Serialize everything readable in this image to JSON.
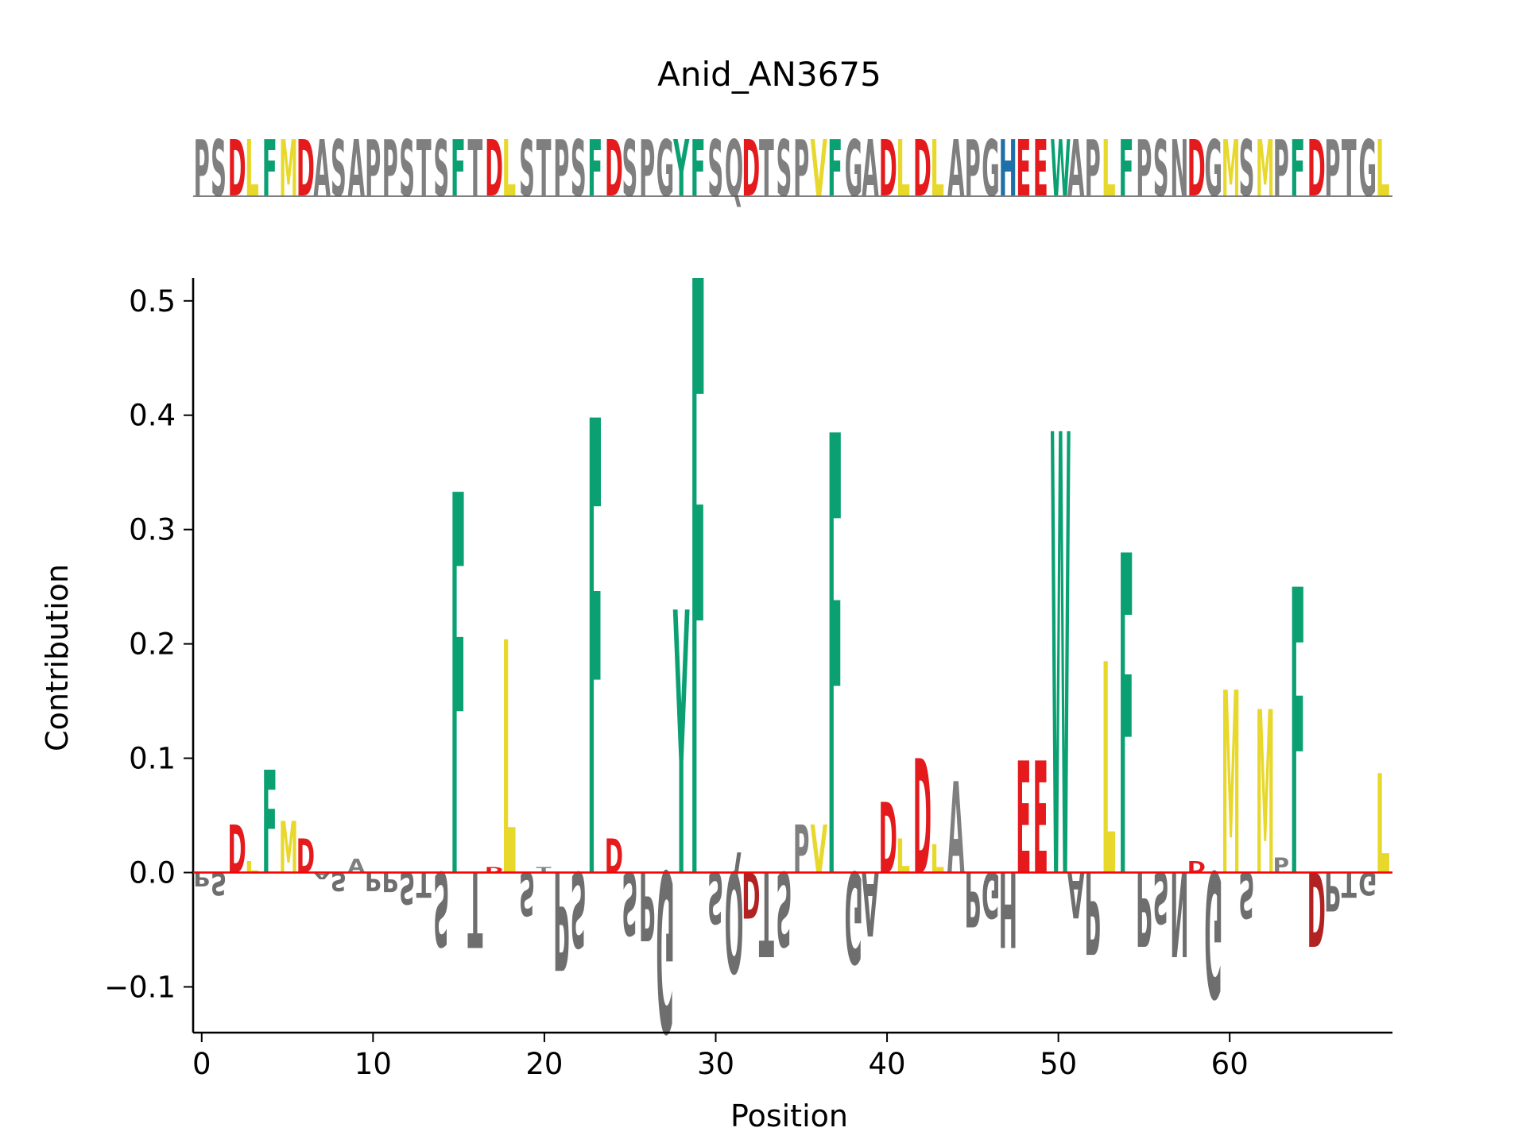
{
  "chart_data": {
    "type": "logo",
    "title": "Anid_AN3675",
    "xlabel": "Position",
    "ylabel": "Contribution",
    "sequence": "PSDLFMDASAPPSTSFTDLSTPSFDSPGYFSQDTSPVFGADLDLAPGHEEWAPLFPSNDGMSMPFDPTGL",
    "xlim": [
      -0.5,
      69.5
    ],
    "ylim": [
      -0.14,
      0.52
    ],
    "xticks": [
      0,
      10,
      20,
      30,
      40,
      50,
      60
    ],
    "yticks": [
      -0.1,
      0.0,
      0.1,
      0.2,
      0.3,
      0.4,
      0.5
    ],
    "ytick_labels": [
      "−0.1",
      "0.0",
      "0.1",
      "0.2",
      "0.3",
      "0.4",
      "0.5"
    ],
    "baseline_color": "#ff0000",
    "colors": {
      "acidic": "#e41a1c",
      "aromatic": "#0aa072",
      "hydrophobic": "#e8d82c",
      "basic": "#1f6fa8",
      "other": "#7f7f7f",
      "negative_other": "#6e6e6e",
      "negative_acidic": "#b22222"
    },
    "letter_colors": {
      "D": "acidic",
      "E": "acidic",
      "F": "aromatic",
      "W": "aromatic",
      "Y": "aromatic",
      "L": "hydrophobic",
      "M": "hydrophobic",
      "V": "hydrophobic",
      "H": "basic",
      "P": "other",
      "S": "other",
      "A": "other",
      "T": "other",
      "G": "other",
      "Q": "other",
      "N": "other"
    },
    "values": [
      -0.012,
      -0.02,
      0.042,
      0.01,
      0.09,
      0.045,
      0.03,
      -0.006,
      -0.016,
      0.012,
      -0.016,
      -0.017,
      -0.028,
      -0.022,
      -0.065,
      0.333,
      -0.066,
      0.005,
      0.204,
      -0.038,
      0.005,
      -0.086,
      -0.066,
      0.398,
      0.03,
      -0.055,
      -0.06,
      -0.14,
      0.23,
      0.52,
      -0.045,
      -0.088,
      -0.04,
      -0.074,
      -0.065,
      0.042,
      0.042,
      0.385,
      -0.08,
      -0.056,
      0.062,
      0.03,
      0.1,
      0.025,
      0.08,
      -0.048,
      -0.04,
      -0.066,
      0.098,
      0.098,
      0.386,
      -0.04,
      -0.072,
      0.185,
      0.28,
      -0.065,
      -0.045,
      -0.074,
      0.01,
      -0.11,
      0.16,
      -0.04,
      0.143,
      0.013,
      0.25,
      -0.065,
      -0.034,
      -0.022,
      -0.02,
      0.087
    ]
  }
}
